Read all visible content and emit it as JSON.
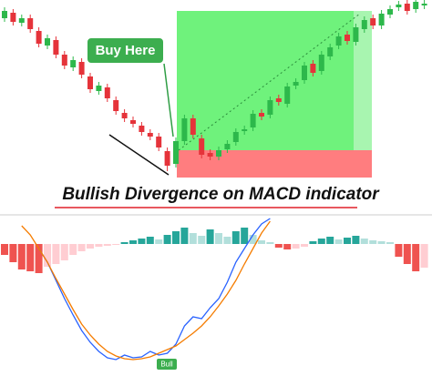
{
  "chart_data": [
    {
      "type": "candlestick",
      "title": "Bullish Divergence on MACD indicator",
      "annotation": "Buy Here",
      "up_color": "#2db84b",
      "down_color": "#e5333a",
      "ylim": [
        0,
        200
      ],
      "open": [
        180,
        186,
        175,
        180,
        166,
        150,
        156,
        140,
        126,
        132,
        116,
        100,
        104,
        90,
        76,
        68,
        62,
        54,
        50,
        34,
        20,
        45,
        70,
        48,
        32,
        28,
        36,
        44,
        56,
        60,
        76,
        74,
        92,
        86,
        106,
        112,
        130,
        122,
        138,
        150,
        162,
        154,
        168,
        180,
        172,
        184,
        192,
        196,
        190,
        194
      ],
      "high": [
        192,
        190,
        184,
        184,
        170,
        162,
        160,
        144,
        138,
        136,
        120,
        110,
        108,
        94,
        80,
        72,
        66,
        58,
        54,
        38,
        49,
        74,
        74,
        52,
        36,
        39,
        46,
        59,
        62,
        79,
        80,
        94,
        96,
        109,
        114,
        132,
        134,
        144,
        152,
        164,
        166,
        174,
        182,
        184,
        189,
        194,
        199,
        200,
        200,
        200
      ],
      "low": [
        176,
        172,
        171,
        164,
        148,
        146,
        136,
        124,
        122,
        114,
        98,
        96,
        88,
        74,
        66,
        60,
        51,
        46,
        34,
        12,
        16,
        41,
        48,
        26,
        24,
        24,
        32,
        40,
        52,
        56,
        68,
        70,
        84,
        82,
        102,
        108,
        116,
        118,
        134,
        146,
        151,
        150,
        164,
        168,
        168,
        180,
        188,
        184,
        186,
        190
      ],
      "close": [
        188,
        176,
        180,
        168,
        152,
        158,
        140,
        128,
        134,
        118,
        102,
        106,
        92,
        78,
        70,
        64,
        55,
        50,
        38,
        18,
        45,
        70,
        52,
        30,
        28,
        35,
        42,
        55,
        58,
        75,
        72,
        90,
        88,
        105,
        110,
        128,
        120,
        140,
        148,
        160,
        155,
        170,
        178,
        172,
        185,
        190,
        195,
        188,
        198,
        196
      ]
    },
    {
      "type": "macd",
      "annotation": "Bull",
      "ylim": [
        -145,
        28
      ],
      "histogram": [
        -12,
        -20,
        -28,
        -30,
        -32,
        -25,
        -22,
        -18,
        -12,
        -8,
        -5,
        -3,
        -2,
        -1,
        2,
        4,
        6,
        8,
        5,
        10,
        14,
        18,
        12,
        9,
        16,
        12,
        8,
        14,
        18,
        10,
        4,
        2,
        -4,
        -6,
        -5,
        -3,
        3,
        6,
        8,
        5,
        7,
        9,
        6,
        4,
        3,
        2,
        -14,
        -22,
        -30,
        -26
      ],
      "hist_colors": {
        "pos_rise": "#26a69a",
        "pos_fall": "#b2dfdb",
        "neg_fall": "#ef5350",
        "neg_rise": "#ffcdd2"
      },
      "series": [
        {
          "color": "#2962ff",
          "values": [
            null,
            null,
            null,
            null,
            -5,
            -20,
            -40,
            -60,
            -78,
            -95,
            -108,
            -118,
            -125,
            -127,
            -122,
            -125,
            -124,
            -118,
            -122,
            -120,
            -110,
            -90,
            -80,
            -82,
            -70,
            -60,
            -42,
            -20,
            -5,
            10,
            22,
            28,
            null,
            null,
            null,
            null,
            null,
            null,
            null,
            null,
            null,
            null,
            null,
            null,
            null,
            null,
            null,
            null,
            null,
            null
          ]
        },
        {
          "color": "#f57c00",
          "values": [
            null,
            null,
            20,
            10,
            -5,
            -20,
            -38,
            -55,
            -72,
            -88,
            -100,
            -110,
            -118,
            -123,
            -126,
            -127,
            -126,
            -124,
            -120,
            -116,
            -112,
            -105,
            -98,
            -90,
            -80,
            -68,
            -55,
            -40,
            -22,
            -5,
            12,
            25,
            null,
            null,
            null,
            null,
            null,
            null,
            null,
            null,
            null,
            null,
            null,
            null,
            null,
            null,
            null,
            null,
            null,
            null
          ]
        }
      ]
    }
  ]
}
